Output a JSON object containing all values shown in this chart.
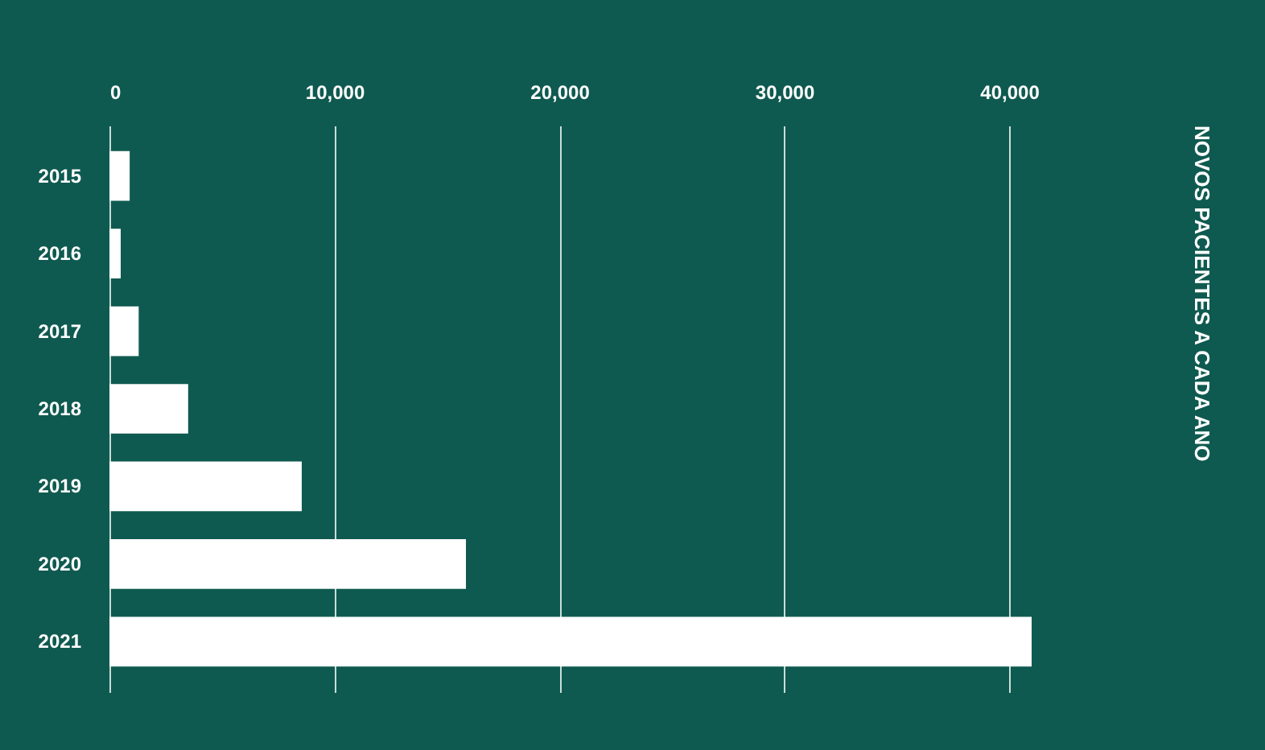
{
  "chart_data": {
    "type": "bar",
    "orientation": "horizontal",
    "title": "NOVOS PACIENTES A CADA ANO",
    "categories": [
      "2015",
      "2016",
      "2017",
      "2018",
      "2019",
      "2020",
      "2021"
    ],
    "values": [
      900,
      500,
      1300,
      3500,
      8550,
      15850,
      41000
    ],
    "color": "#ffffff",
    "xlim": [
      0,
      41000
    ],
    "xticks": [
      0,
      {
        "value": 10000,
        "label": "10,000"
      },
      {
        "value": 20000,
        "label": "20,000"
      },
      {
        "value": 30000,
        "label": "30,000"
      },
      {
        "value": 40000,
        "label": "40,000"
      }
    ],
    "grid": "x"
  }
}
